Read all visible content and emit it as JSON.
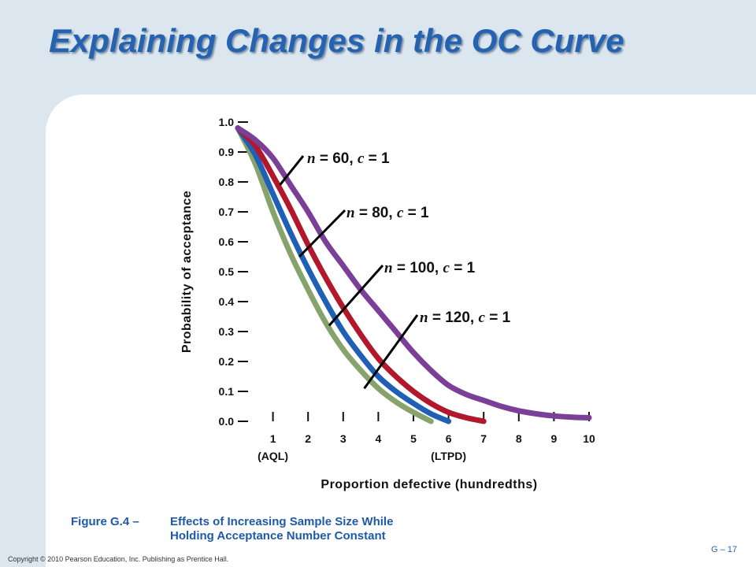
{
  "slide": {
    "title": "Explaining Changes in the OC Curve",
    "figure_label": "Figure G.4 –",
    "figure_caption_line1": "Effects of Increasing Sample Size While",
    "figure_caption_line2": "Holding Acceptance Number Constant",
    "copyright": "Copyright © 2010 Pearson Education, Inc. Publishing as Prentice Hall.",
    "page_number": "G – 17"
  },
  "colors": {
    "title": "#2563b0",
    "background": "#dce6ef",
    "panel": "#ffffff"
  },
  "chart_data": {
    "type": "line",
    "xlabel": "Proportion defective (hundredths)",
    "ylabel": "Probability of acceptance",
    "xlim": [
      0,
      10
    ],
    "ylim": [
      0,
      1
    ],
    "x_ticks": [
      "1",
      "2",
      "3",
      "4",
      "5",
      "6",
      "7",
      "8",
      "9",
      "10"
    ],
    "y_ticks": [
      "0.0",
      "0.1",
      "0.2",
      "0.3",
      "0.4",
      "0.5",
      "0.6",
      "0.7",
      "0.8",
      "0.9",
      "1.0"
    ],
    "x_tick_annotations": [
      {
        "x": 1,
        "label": "(AQL)"
      },
      {
        "x": 6,
        "label": "(LTPD)"
      }
    ],
    "series": [
      {
        "name": "n = 60, c = 1",
        "n": "60",
        "c": "1",
        "color": "#7b3f98",
        "label_anchor_x": 1.2,
        "label_anchor_y": 0.79,
        "x": [
          0,
          0.5,
          1,
          1.5,
          2,
          2.5,
          3,
          3.5,
          4,
          4.5,
          5,
          5.5,
          6,
          6.5,
          7,
          7.5,
          8,
          8.5,
          9,
          9.5,
          10
        ],
        "y": [
          0.98,
          0.94,
          0.88,
          0.79,
          0.7,
          0.6,
          0.52,
          0.44,
          0.37,
          0.3,
          0.23,
          0.17,
          0.12,
          0.09,
          0.07,
          0.05,
          0.035,
          0.025,
          0.018,
          0.014,
          0.012
        ]
      },
      {
        "name": "n = 80, c = 1",
        "n": "80",
        "c": "1",
        "color": "#b2182b",
        "label_anchor_x": 1.75,
        "label_anchor_y": 0.55,
        "x": [
          0,
          0.5,
          1,
          1.5,
          2,
          2.5,
          3,
          3.5,
          4,
          4.5,
          5,
          5.5,
          6,
          6.5,
          7
        ],
        "y": [
          0.98,
          0.92,
          0.82,
          0.71,
          0.59,
          0.48,
          0.38,
          0.29,
          0.21,
          0.15,
          0.1,
          0.06,
          0.03,
          0.012,
          0.0
        ]
      },
      {
        "name": "n = 100, c = 1",
        "n": "100",
        "c": "1",
        "color": "#1f5fb5",
        "label_anchor_x": 2.6,
        "label_anchor_y": 0.32,
        "x": [
          0,
          0.5,
          1,
          1.5,
          2,
          2.5,
          3,
          3.5,
          4,
          4.5,
          5,
          5.5,
          6
        ],
        "y": [
          0.98,
          0.89,
          0.76,
          0.63,
          0.51,
          0.4,
          0.3,
          0.22,
          0.15,
          0.1,
          0.06,
          0.025,
          0.0
        ]
      },
      {
        "name": "n = 120, c = 1",
        "n": "120",
        "c": "1",
        "color": "#85a36b",
        "label_anchor_x": 3.6,
        "label_anchor_y": 0.11,
        "x": [
          0,
          0.5,
          1,
          1.5,
          2,
          2.5,
          3,
          3.5,
          4,
          4.5,
          5,
          5.5
        ],
        "y": [
          0.98,
          0.86,
          0.7,
          0.56,
          0.44,
          0.33,
          0.24,
          0.17,
          0.11,
          0.065,
          0.03,
          0.0
        ]
      }
    ]
  }
}
